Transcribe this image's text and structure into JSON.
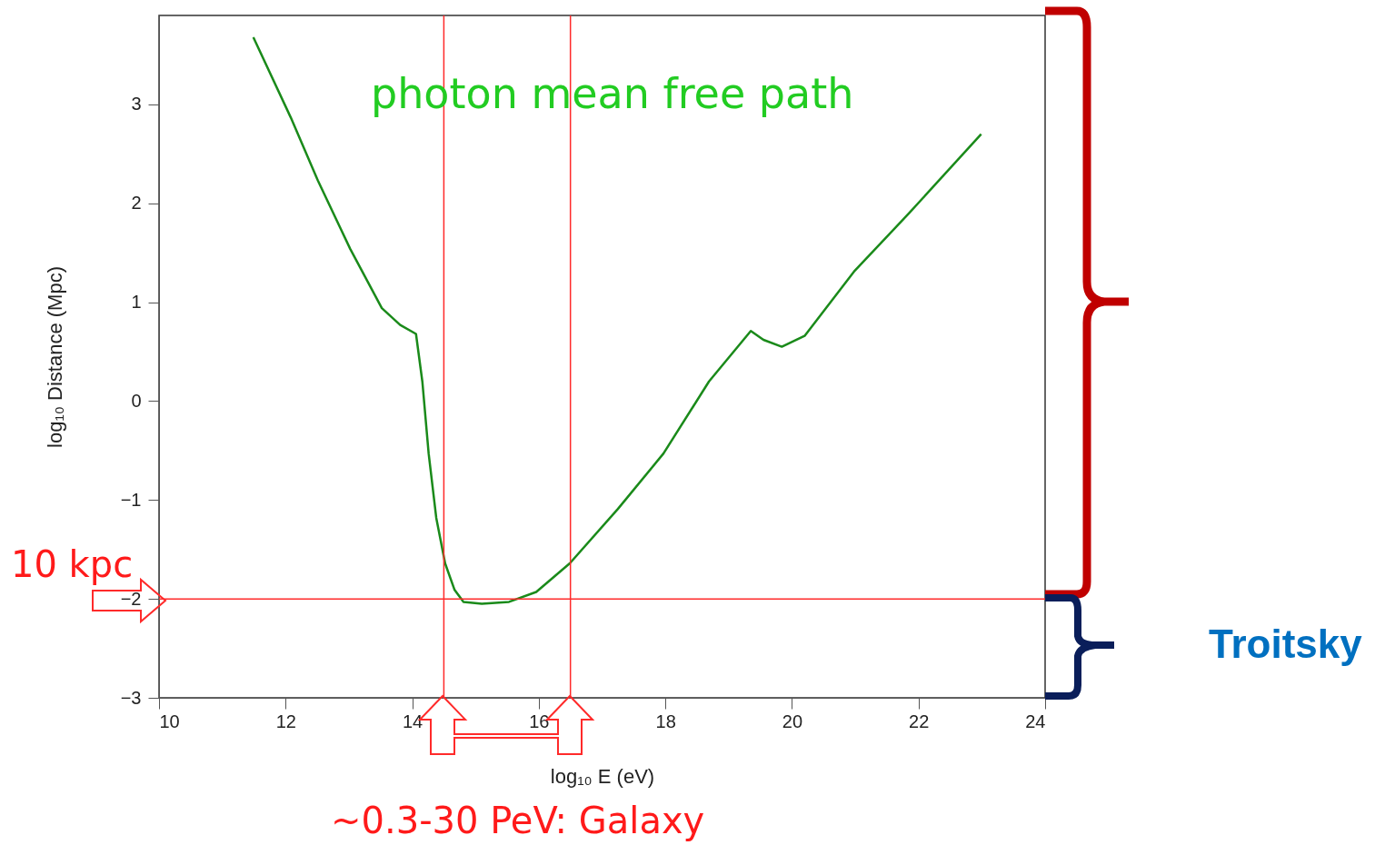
{
  "chart_data": {
    "type": "line",
    "xlabel": "log₁₀ E (eV)",
    "ylabel": "log₁₀ Distance (Mpc)",
    "x": [
      11.49,
      12.08,
      12.51,
      13.02,
      13.52,
      13.81,
      14.06,
      14.16,
      14.26,
      14.38,
      14.52,
      14.67,
      14.81,
      15.1,
      15.53,
      15.96,
      16.49,
      17.25,
      17.97,
      18.69,
      19.35,
      19.55,
      19.84,
      20.2,
      20.98,
      21.85,
      22.99
    ],
    "series": [
      {
        "color": "#1a8a1a",
        "values": [
          3.68,
          2.87,
          2.23,
          1.54,
          0.94,
          0.77,
          0.68,
          0.2,
          -0.53,
          -1.18,
          -1.64,
          -1.91,
          -2.03,
          -2.05,
          -2.03,
          -1.93,
          -1.64,
          -1.09,
          -0.53,
          0.2,
          0.71,
          0.62,
          0.55,
          0.66,
          1.31,
          1.9,
          2.7
        ]
      }
    ],
    "xlim": [
      10,
      24
    ],
    "xticks": [
      10,
      12,
      14,
      16,
      18,
      20,
      22,
      24
    ],
    "ylim": [
      -3,
      3.9
    ],
    "yticks": [
      -3,
      -2,
      -1,
      0,
      1,
      2,
      3
    ],
    "grid": false,
    "marker": "none",
    "line_style": "solid",
    "ref_lines": [
      {
        "axis": "x",
        "value": 14.5,
        "color": "#ff2a2a"
      },
      {
        "axis": "x",
        "value": 16.5,
        "color": "#ff2a2a"
      },
      {
        "axis": "y",
        "value": -2,
        "color": "#ff2a2a"
      }
    ],
    "annotations": [
      "photon mean free path",
      "10 kpc",
      "~0.3-30 PeV: Galaxy",
      "Troitsky"
    ]
  }
}
